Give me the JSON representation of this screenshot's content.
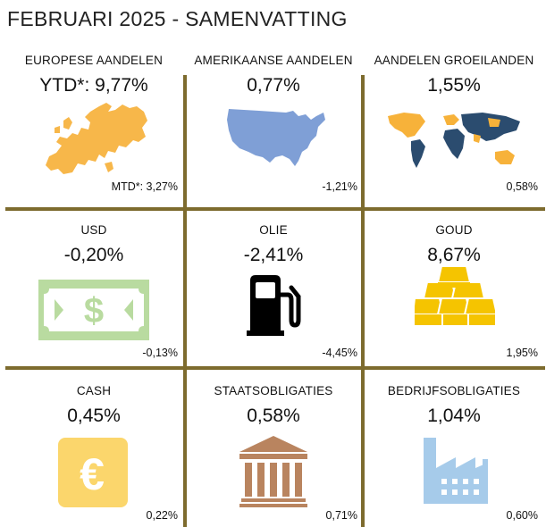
{
  "title": "FEBRUARI 2025 - SAMENVATTING",
  "colors": {
    "divider": "#7d6b2e",
    "europe": "#f7b74a",
    "usa": "#7f9fd6",
    "emerging_highlight": "#f7b23a",
    "emerging_base": "#2b4c6f",
    "usd": "#b9dba0",
    "oil": "#000000",
    "gold": "#f5c400",
    "cash": "#fbd66c",
    "government_bonds": "#b9845f",
    "corporate_bonds": "#a6cbea"
  },
  "cells": [
    {
      "id": "europe",
      "label": "EUROPESE AANDELEN",
      "ytd": "YTD*: 9,77%",
      "mtd": "MTD*: 3,27%",
      "icon": "europe-map-icon"
    },
    {
      "id": "usa",
      "label": "AMERIKAANSE AANDELEN",
      "ytd": "0,77%",
      "mtd": "-1,21%",
      "icon": "usa-map-icon"
    },
    {
      "id": "emerging",
      "label": "AANDELEN GROEILANDEN",
      "ytd": "1,55%",
      "mtd": "0,58%",
      "icon": "world-map-icon"
    },
    {
      "id": "usd",
      "label": "USD",
      "ytd": "-0,20%",
      "mtd": "-0,13%",
      "icon": "dollar-bill-icon"
    },
    {
      "id": "oil",
      "label": "OLIE",
      "ytd": "-2,41%",
      "mtd": "-4,45%",
      "icon": "fuel-pump-icon"
    },
    {
      "id": "gold",
      "label": "GOUD",
      "ytd": "8,67%",
      "mtd": "1,95%",
      "icon": "gold-bars-icon"
    },
    {
      "id": "cash",
      "label": "CASH",
      "ytd": "0,45%",
      "mtd": "0,22%",
      "icon": "euro-coin-icon"
    },
    {
      "id": "govbonds",
      "label": "STAATSOBLIGATIES",
      "ytd": "0,58%",
      "mtd": "0,71%",
      "icon": "bank-building-icon"
    },
    {
      "id": "corpbonds",
      "label": "BEDRIJFSOBLIGATIES",
      "ytd": "1,04%",
      "mtd": "0,60%",
      "icon": "factory-icon"
    }
  ]
}
